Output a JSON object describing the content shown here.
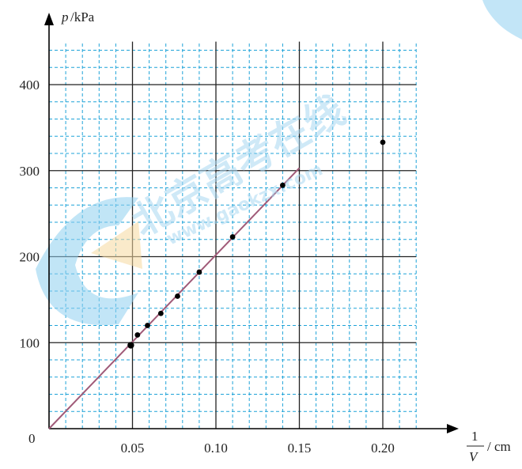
{
  "chart_data": {
    "type": "scatter",
    "title": "",
    "ylabel_var": "p",
    "ylabel_unit": "/kPa",
    "xlabel_num": "1",
    "xlabel_den": "V",
    "xlabel_unit": "/ cm",
    "origin_label": "0",
    "xlim": [
      0,
      0.22
    ],
    "ylim": [
      0,
      450
    ],
    "grid": true,
    "x_ticks": [
      {
        "value": 0.05,
        "label": "0.05"
      },
      {
        "value": 0.1,
        "label": "0.10"
      },
      {
        "value": 0.15,
        "label": "0.15"
      },
      {
        "value": 0.2,
        "label": "0.20"
      }
    ],
    "y_ticks": [
      {
        "value": 100,
        "label": "100"
      },
      {
        "value": 200,
        "label": "200"
      },
      {
        "value": 300,
        "label": "300"
      },
      {
        "value": 400,
        "label": "400"
      }
    ],
    "points": [
      {
        "x": 0.049,
        "y": 97
      },
      {
        "x": 0.053,
        "y": 109
      },
      {
        "x": 0.059,
        "y": 120
      },
      {
        "x": 0.067,
        "y": 134
      },
      {
        "x": 0.077,
        "y": 154
      },
      {
        "x": 0.09,
        "y": 182
      },
      {
        "x": 0.11,
        "y": 223
      },
      {
        "x": 0.14,
        "y": 283
      },
      {
        "x": 0.2,
        "y": 333
      }
    ],
    "fit_line": {
      "x": [
        0,
        0.15
      ],
      "y": [
        0,
        303
      ]
    },
    "colors": {
      "major_grid": "#222222",
      "minor_grid": "#1fa3d8",
      "fit_line": "#a05a78",
      "points": "#000000",
      "watermark": "#bfe3f6",
      "watermark_accent": "#f6d9a0"
    }
  },
  "watermark": {
    "brand": "北京高考在线",
    "url": "www.gaokzx.com"
  }
}
